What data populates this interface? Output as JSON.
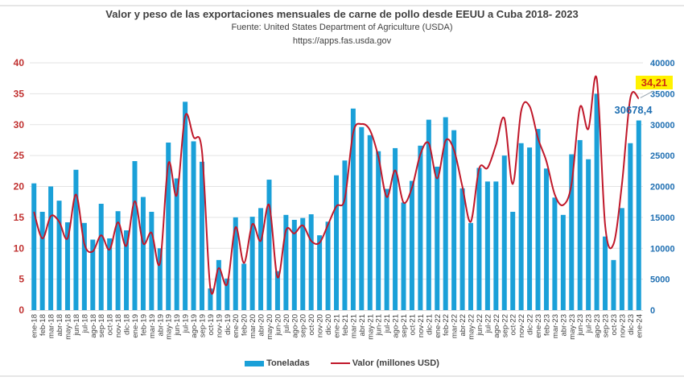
{
  "chart_data": {
    "type": "bar+line",
    "title": "Valor y peso de las exportaciones mensuales de carne de pollo desde EEUU a Cuba 2018- 2023",
    "subtitle": "Fuente: United States Department of Agriculture (USDA)",
    "source_url": "https://apps.fas.usda.gov",
    "xlabel": "",
    "ylabel_left": "",
    "ylabel_right": "",
    "ylim_left": [
      0,
      40
    ],
    "ylim_right": [
      0,
      40000
    ],
    "yticks_left": [
      "0",
      "5",
      "10",
      "15",
      "20",
      "25",
      "30",
      "35",
      "40"
    ],
    "yticks_right": [
      "0",
      "5000",
      "10000",
      "15000",
      "20000",
      "25000",
      "30000",
      "35000",
      "40000"
    ],
    "grid": true,
    "legend_position": "bottom",
    "categories": [
      "ene-18",
      "feb-18",
      "mar-18",
      "abr-18",
      "may-18",
      "jun-18",
      "jul-18",
      "ago-18",
      "sep-18",
      "oct-18",
      "nov-18",
      "dic-18",
      "ene-19",
      "feb-19",
      "mar-19",
      "abr-19",
      "may-19",
      "jun-19",
      "jul-19",
      "ago-19",
      "sep-19",
      "oct-19",
      "nov-19",
      "dic-19",
      "ene-20",
      "feb-20",
      "mar-20",
      "abr-20",
      "may-20",
      "jun-20",
      "jul-20",
      "ago-20",
      "sep-20",
      "oct-20",
      "nov-20",
      "dic-20",
      "ene-21",
      "feb-21",
      "mar-21",
      "abr-21",
      "may-21",
      "jun-21",
      "jul-21",
      "ago-21",
      "sep-21",
      "oct-21",
      "nov-21",
      "dic-21",
      "ene-22",
      "feb-22",
      "mar-22",
      "abr-22",
      "may-22",
      "jun-22",
      "jul-22",
      "ago-22",
      "sep-22",
      "oct-22",
      "nov-22",
      "dic-22",
      "ene-23",
      "feb-23",
      "mar-23",
      "abr-23",
      "may-23",
      "jun-23",
      "jul-23",
      "ago-23",
      "sep-23",
      "oct-23",
      "nov-23",
      "dic-23",
      "ene-24"
    ],
    "series": [
      {
        "name": "Toneladas",
        "type": "bar",
        "axis": "right",
        "color": "#1aa0d8",
        "values": [
          20500,
          15900,
          20000,
          17700,
          14200,
          22700,
          14100,
          11400,
          17200,
          11600,
          16000,
          12900,
          24100,
          18300,
          15900,
          10000,
          27100,
          21300,
          33700,
          27300,
          24000,
          3500,
          8100,
          5100,
          15000,
          7500,
          15100,
          16500,
          21100,
          6300,
          15400,
          14600,
          14900,
          15500,
          12100,
          14300,
          21800,
          24200,
          32600,
          29600,
          28300,
          25700,
          19600,
          26200,
          17400,
          20900,
          26600,
          30800,
          23200,
          31200,
          29100,
          19700,
          14100,
          23000,
          20800,
          20800,
          25000,
          15900,
          27000,
          26300,
          29300,
          22900,
          18200,
          15400,
          25200,
          27500,
          24400,
          35000,
          11900,
          8100,
          16500,
          27000,
          30678.4
        ]
      },
      {
        "name": "Valor (millones USD)",
        "type": "line",
        "axis": "left",
        "color": "#c0182a",
        "values": [
          15.9,
          11.6,
          15.2,
          14.3,
          11.6,
          18.7,
          10.7,
          9.5,
          12.1,
          9.8,
          14.2,
          10.4,
          17.6,
          10.8,
          12.5,
          7.6,
          23.7,
          18.6,
          31.4,
          28.0,
          25.7,
          3.5,
          6.8,
          4.2,
          13.4,
          7.6,
          13.9,
          11.2,
          17.0,
          5.3,
          12.9,
          12.4,
          13.7,
          11.2,
          10.9,
          13.8,
          16.8,
          18.0,
          28.7,
          30.1,
          29.1,
          24.8,
          18.3,
          22.6,
          17.4,
          19.8,
          25.2,
          27.0,
          21.3,
          27.4,
          25.9,
          20.0,
          14.3,
          22.9,
          23.0,
          26.7,
          31.0,
          20.4,
          32.2,
          33.0,
          27.8,
          24.1,
          18.7,
          17.0,
          20.4,
          32.8,
          29.3,
          37.4,
          13.7,
          10.7,
          20.4,
          34.3,
          34.21
        ]
      }
    ],
    "annotations": [
      {
        "text": "34,21",
        "target": "ene-24",
        "series": "Valor (millones USD)",
        "highlight": "#fff200"
      },
      {
        "text": "30678,4",
        "target": "ene-24",
        "series": "Toneladas"
      }
    ]
  },
  "legend": {
    "bar_label": "Toneladas",
    "line_label": "Valor (millones USD)"
  }
}
